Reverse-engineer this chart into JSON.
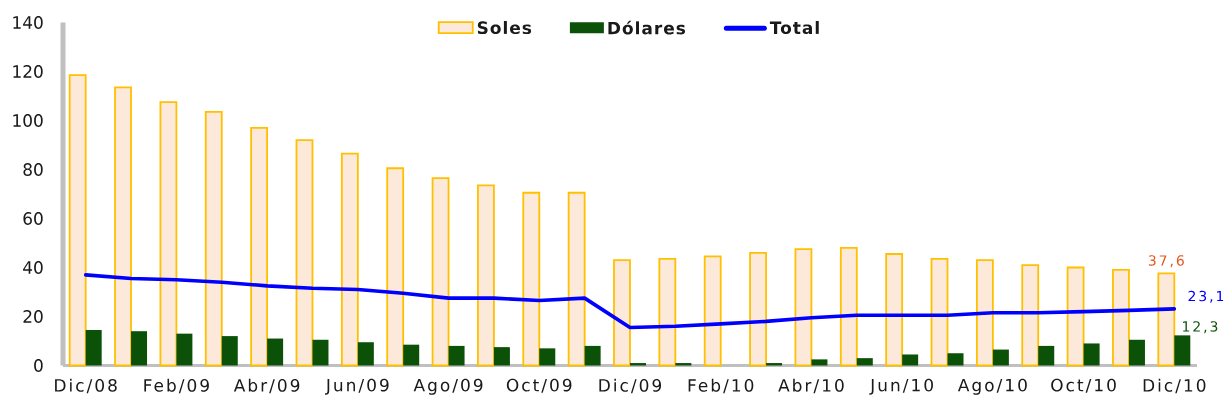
{
  "chart_data": {
    "type": "bar",
    "categories": [
      "Dic/08",
      null,
      "Feb/09",
      null,
      "Abr/09",
      null,
      "Jun/09",
      null,
      "Ago/09",
      null,
      "Oct/09",
      null,
      "Dic/09",
      null,
      "Feb/10",
      null,
      "Abr/10",
      null,
      "Jun/10",
      null,
      "Ago/10",
      null,
      "Oct/10",
      null,
      "Dic/10"
    ],
    "series": [
      {
        "name": "Soles",
        "color": "#fde9d9",
        "values": [
          118.5,
          113.5,
          107.5,
          103.5,
          97,
          92,
          86.5,
          80.5,
          76.5,
          73.5,
          70.5,
          70.5,
          43,
          43.5,
          44.5,
          46,
          47.5,
          48,
          45.5,
          43.5,
          43,
          41,
          40,
          39,
          37.6
        ],
        "value_labels": [
          null,
          null,
          null,
          null,
          null,
          null,
          null,
          null,
          null,
          null,
          null,
          null,
          null,
          null,
          null,
          null,
          null,
          null,
          null,
          null,
          null,
          null,
          null,
          null,
          "37,6"
        ]
      },
      {
        "name": "Dólares",
        "color": "#0b5108",
        "values": [
          14.5,
          14,
          13,
          12,
          11,
          10.5,
          9.5,
          8.5,
          8,
          7.5,
          7,
          8,
          1,
          1,
          0,
          1,
          2.5,
          3,
          4.5,
          5,
          6.5,
          8,
          9,
          10.5,
          12.3
        ],
        "value_labels": [
          null,
          null,
          null,
          null,
          null,
          null,
          null,
          null,
          null,
          null,
          null,
          null,
          null,
          null,
          null,
          null,
          null,
          null,
          null,
          null,
          null,
          null,
          null,
          null,
          "12,3"
        ]
      },
      {
        "name": "Total",
        "type": "line",
        "color": "#0000ff",
        "values": [
          37,
          35.5,
          35,
          34,
          32.5,
          31.5,
          31,
          29.5,
          27.5,
          27.5,
          26.5,
          27.5,
          15.5,
          16,
          17,
          18,
          19.5,
          20.5,
          20.5,
          20.5,
          21.5,
          21.5,
          22,
          22.5,
          23.1
        ],
        "value_labels": [
          null,
          null,
          null,
          null,
          null,
          null,
          null,
          null,
          null,
          null,
          null,
          null,
          null,
          null,
          null,
          null,
          null,
          null,
          null,
          null,
          null,
          null,
          null,
          null,
          "23,1"
        ]
      }
    ],
    "ylim": [
      0,
      140
    ],
    "yticks": [
      0,
      20,
      40,
      60,
      80,
      100,
      120,
      140
    ],
    "legend": "top"
  }
}
